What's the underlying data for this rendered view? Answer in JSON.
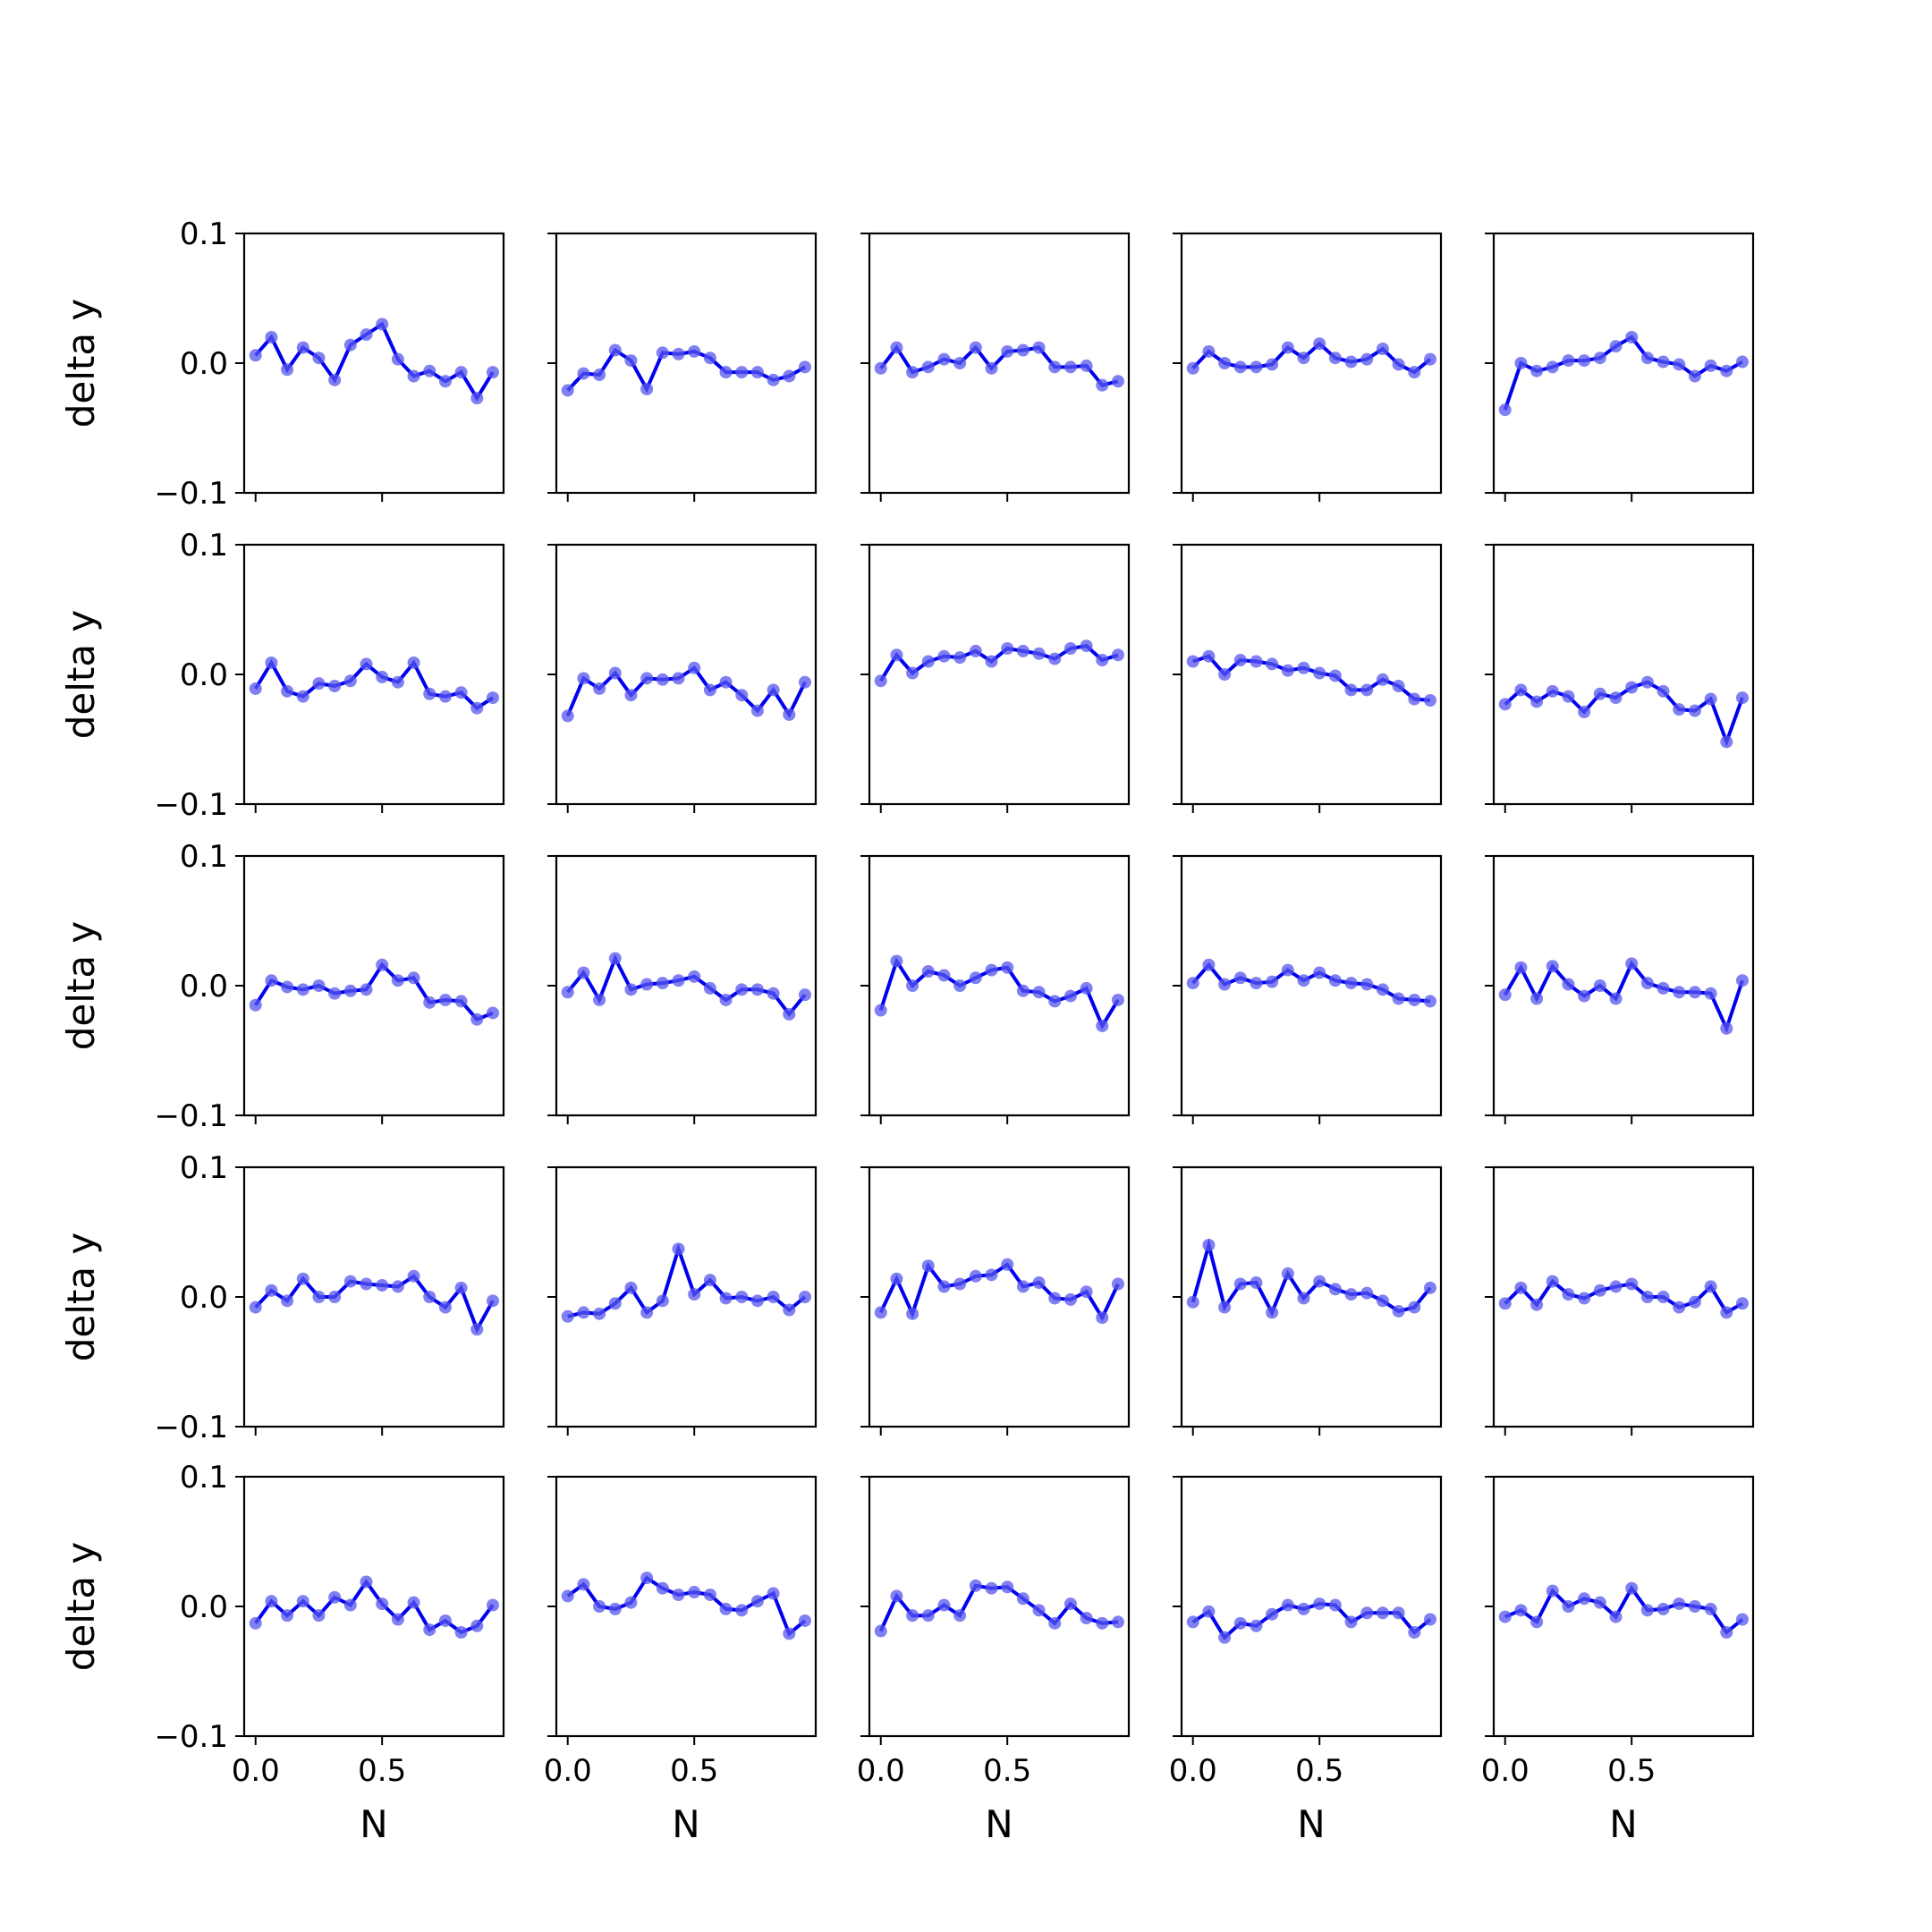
{
  "figure": {
    "colors": {
      "line": "#0000ee",
      "marker": "#5555ee",
      "axes": "#000000",
      "background": "#ffffff"
    }
  },
  "chart_data": {
    "type": "line",
    "layout": "5x5 grid of subplots, shared axes",
    "xlabel": "N",
    "ylabel": "delta y",
    "xlim": [
      -0.045,
      0.98
    ],
    "ylim": [
      -0.1,
      0.1
    ],
    "xticks": [
      0.0,
      0.5
    ],
    "xtick_labels": [
      "0.0",
      "0.5"
    ],
    "yticks": [
      -0.1,
      0.0,
      0.1
    ],
    "ytick_labels": [
      "−0.1",
      "0.0",
      "0.1"
    ],
    "x": [
      0,
      0.0625,
      0.125,
      0.1875,
      0.25,
      0.3125,
      0.375,
      0.4375,
      0.5,
      0.5625,
      0.625,
      0.6875,
      0.75,
      0.8125,
      0.875,
      0.9375
    ],
    "grid": false,
    "legend": "none",
    "panels": [
      [
        0.006,
        0.02,
        -0.005,
        0.012,
        0.004,
        -0.013,
        0.014,
        0.022,
        0.03,
        0.003,
        -0.01,
        -0.006,
        -0.014,
        -0.007,
        -0.027,
        -0.007
      ],
      [
        -0.021,
        -0.008,
        -0.009,
        0.01,
        0.002,
        -0.02,
        0.008,
        0.007,
        0.009,
        0.004,
        -0.007,
        -0.007,
        -0.007,
        -0.013,
        -0.01,
        -0.003
      ],
      [
        -0.004,
        0.012,
        -0.007,
        -0.003,
        0.003,
        0.0,
        0.012,
        -0.004,
        0.009,
        0.01,
        0.012,
        -0.003,
        -0.003,
        -0.002,
        -0.017,
        -0.014
      ],
      [
        -0.004,
        0.009,
        0.0,
        -0.003,
        -0.003,
        -0.001,
        0.012,
        0.004,
        0.015,
        0.004,
        0.001,
        0.003,
        0.011,
        -0.001,
        -0.007,
        0.003
      ],
      [
        -0.036,
        0.0,
        -0.006,
        -0.003,
        0.002,
        0.002,
        0.004,
        0.013,
        0.02,
        0.004,
        0.001,
        -0.001,
        -0.01,
        -0.002,
        -0.006,
        0.001
      ],
      [
        -0.011,
        0.009,
        -0.013,
        -0.017,
        -0.007,
        -0.009,
        -0.005,
        0.008,
        -0.002,
        -0.006,
        0.009,
        -0.015,
        -0.017,
        -0.014,
        -0.026,
        -0.018
      ],
      [
        -0.032,
        -0.003,
        -0.011,
        0.001,
        -0.016,
        -0.003,
        -0.004,
        -0.003,
        0.005,
        -0.012,
        -0.006,
        -0.016,
        -0.028,
        -0.012,
        -0.031,
        -0.006
      ],
      [
        -0.005,
        0.015,
        0.001,
        0.01,
        0.014,
        0.013,
        0.018,
        0.01,
        0.02,
        0.018,
        0.016,
        0.012,
        0.02,
        0.022,
        0.011,
        0.015
      ],
      [
        0.01,
        0.014,
        0.0,
        0.011,
        0.01,
        0.008,
        0.003,
        0.005,
        0.001,
        -0.001,
        -0.012,
        -0.012,
        -0.004,
        -0.009,
        -0.019,
        -0.02
      ],
      [
        -0.023,
        -0.012,
        -0.021,
        -0.013,
        -0.017,
        -0.029,
        -0.015,
        -0.018,
        -0.01,
        -0.006,
        -0.013,
        -0.027,
        -0.028,
        -0.019,
        -0.052,
        -0.018
      ],
      [
        -0.015,
        0.004,
        -0.001,
        -0.003,
        0.0,
        -0.006,
        -0.004,
        -0.003,
        0.016,
        0.004,
        0.006,
        -0.013,
        -0.011,
        -0.012,
        -0.026,
        -0.021
      ],
      [
        -0.005,
        0.01,
        -0.011,
        0.021,
        -0.003,
        0.001,
        0.002,
        0.004,
        0.007,
        -0.002,
        -0.011,
        -0.003,
        -0.003,
        -0.006,
        -0.022,
        -0.007
      ],
      [
        -0.019,
        0.019,
        0.0,
        0.011,
        0.008,
        0.0,
        0.006,
        0.012,
        0.014,
        -0.004,
        -0.005,
        -0.012,
        -0.008,
        -0.002,
        -0.031,
        -0.011
      ],
      [
        0.002,
        0.016,
        0.001,
        0.006,
        0.002,
        0.003,
        0.012,
        0.004,
        0.01,
        0.004,
        0.002,
        0.001,
        -0.003,
        -0.01,
        -0.011,
        -0.012
      ],
      [
        -0.007,
        0.014,
        -0.01,
        0.015,
        0.001,
        -0.008,
        0.0,
        -0.01,
        0.017,
        0.002,
        -0.002,
        -0.005,
        -0.005,
        -0.006,
        -0.033,
        0.004
      ],
      [
        -0.008,
        0.005,
        -0.003,
        0.014,
        0.0,
        0.0,
        0.012,
        0.01,
        0.009,
        0.008,
        0.016,
        0.0,
        -0.008,
        0.007,
        -0.025,
        -0.003
      ],
      [
        -0.015,
        -0.012,
        -0.013,
        -0.005,
        0.007,
        -0.012,
        -0.003,
        0.037,
        0.002,
        0.013,
        -0.001,
        0.0,
        -0.003,
        0.0,
        -0.01,
        0.0
      ],
      [
        -0.012,
        0.014,
        -0.013,
        0.024,
        0.008,
        0.01,
        0.016,
        0.017,
        0.025,
        0.008,
        0.011,
        -0.001,
        -0.002,
        0.004,
        -0.016,
        0.01
      ],
      [
        -0.004,
        0.04,
        -0.008,
        0.01,
        0.011,
        -0.012,
        0.018,
        -0.001,
        0.012,
        0.006,
        0.002,
        0.003,
        -0.003,
        -0.011,
        -0.008,
        0.007
      ],
      [
        -0.005,
        0.007,
        -0.006,
        0.012,
        0.002,
        -0.001,
        0.005,
        0.008,
        0.01,
        0.0,
        0.0,
        -0.008,
        -0.004,
        0.008,
        -0.012,
        -0.005
      ],
      [
        -0.013,
        0.004,
        -0.007,
        0.004,
        -0.007,
        0.007,
        0.001,
        0.019,
        0.002,
        -0.01,
        0.003,
        -0.018,
        -0.011,
        -0.02,
        -0.015,
        0.001
      ],
      [
        0.008,
        0.017,
        0.0,
        -0.002,
        0.003,
        0.022,
        0.014,
        0.009,
        0.011,
        0.009,
        -0.002,
        -0.003,
        0.004,
        0.01,
        -0.021,
        -0.011
      ],
      [
        -0.019,
        0.008,
        -0.007,
        -0.007,
        0.001,
        -0.007,
        0.016,
        0.014,
        0.015,
        0.006,
        -0.003,
        -0.013,
        0.002,
        -0.009,
        -0.013,
        -0.012
      ],
      [
        -0.012,
        -0.004,
        -0.024,
        -0.013,
        -0.015,
        -0.006,
        0.001,
        -0.002,
        0.002,
        0.001,
        -0.012,
        -0.005,
        -0.005,
        -0.005,
        -0.02,
        -0.01
      ],
      [
        -0.008,
        -0.003,
        -0.012,
        0.012,
        0.0,
        0.006,
        0.003,
        -0.008,
        0.014,
        -0.003,
        -0.002,
        0.002,
        0.0,
        -0.002,
        -0.02,
        -0.01
      ]
    ]
  }
}
